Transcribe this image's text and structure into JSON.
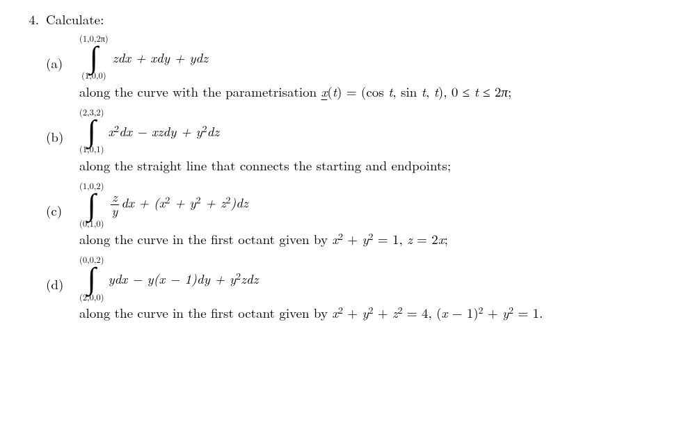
{
  "problem": {
    "number": "4.",
    "stem": "Calculate:"
  },
  "parts": [
    {
      "label": "(a)",
      "upper_limit": "(1,0,2π)",
      "lower_limit": "(1,0,0)",
      "integrand_html": "<span class='math'>zdx</span> + <span class='math'>xdy</span> + <span class='math'>ydz</span>",
      "desc_html": "along the curve with the parametrisation <span class='underline math'>x</span>(<span class='math'>t</span>) = (cos <span class='math'>t</span>, sin <span class='math'>t</span>, <span class='math'>t</span>), 0 ≤ <span class='math'>t</span> ≤ 2<span class='math'>π</span>;"
    },
    {
      "label": "(b)",
      "upper_limit": "(2,3,2)",
      "lower_limit": "(1,0,1)",
      "integrand_html": "<span class='math'>x</span><sup>2</sup><span class='math'>dx</span> − <span class='math'>xzdy</span> + <span class='math'>y</span><sup>2</sup><span class='math'>dz</span>",
      "desc_html": "along the straight line that connects the starting and endpoints;"
    },
    {
      "label": "(c)",
      "upper_limit": "(1,0,2)",
      "lower_limit": "(0,1,0)",
      "integrand_html": "<span class='frac'><span class='num'><span class='math'>z</span></span><span class='den'><span class='math'>y</span></span></span><span class='math'>dx</span> + (<span class='math'>x</span><sup>2</sup> + <span class='math'>y</span><sup>2</sup> + <span class='math'>z</span><sup>2</sup>)<span class='math'>dz</span>",
      "desc_html": "along the curve in the first octant given by <span class='math'>x</span><sup>2</sup> + <span class='math'>y</span><sup>2</sup> = 1, <span class='math'>z</span> = 2<span class='math'>x</span>;"
    },
    {
      "label": "(d)",
      "upper_limit": "(0,0,2)",
      "lower_limit": "(2,0,0)",
      "integrand_html": "<span class='math'>ydx</span> − <span class='math'>y</span>(<span class='math'>x</span> − 1)<span class='math'>dy</span> + <span class='math'>y</span><sup>2</sup><span class='math'>zdz</span>",
      "desc_html": "along the curve in the first octant given by <span class='math'>x</span><sup>2</sup> + <span class='math'>y</span><sup>2</sup> + <span class='math'>z</span><sup>2</sup> = 4, (<span class='math'>x</span> − 1)<sup>2</sup> + <span class='math'>y</span><sup>2</sup> = 1."
    }
  ]
}
